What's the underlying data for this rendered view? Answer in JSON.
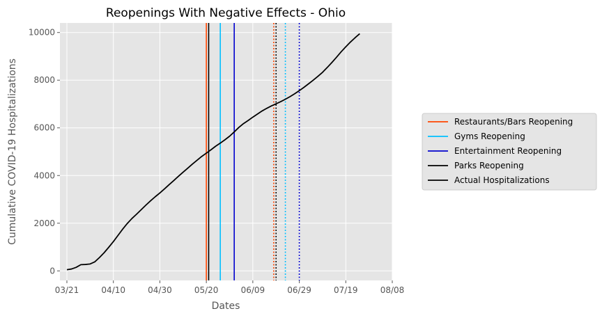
{
  "chart_data": {
    "type": "line",
    "title": "Reopenings With Negative Effects - Ohio",
    "xlabel": "Dates",
    "ylabel": "Cumulative COVID-19 Hospitalizations",
    "x_ticks": [
      "03/21",
      "04/10",
      "04/30",
      "05/20",
      "06/09",
      "06/29",
      "07/19",
      "08/08"
    ],
    "x_tick_days": [
      0,
      20,
      40,
      60,
      80,
      100,
      120,
      140
    ],
    "y_ticks": [
      0,
      2000,
      4000,
      6000,
      8000,
      10000
    ],
    "xlim": [
      "03/18",
      "08/08"
    ],
    "ylim": [
      -400,
      10400
    ],
    "grid": true,
    "legend_position": "right",
    "colors": {
      "background": "#e5e5e5",
      "grid": "#ffffff",
      "restaurants": "#ff4500",
      "gyms": "#00bfff",
      "entertainment": "#0000cd",
      "parks": "#000000",
      "actual": "#000000"
    },
    "series": [
      {
        "name": "Actual Hospitalizations",
        "color": "#000000",
        "points": [
          [
            "03/21",
            50
          ],
          [
            "03/23",
            80
          ],
          [
            "03/25",
            150
          ],
          [
            "03/27",
            260
          ],
          [
            "03/29",
            270
          ],
          [
            "03/31",
            290
          ],
          [
            "04/02",
            380
          ],
          [
            "04/04",
            560
          ],
          [
            "04/06",
            760
          ],
          [
            "04/08",
            990
          ],
          [
            "04/10",
            1230
          ],
          [
            "04/12",
            1490
          ],
          [
            "04/14",
            1750
          ],
          [
            "04/16",
            1990
          ],
          [
            "04/18",
            2200
          ],
          [
            "04/20",
            2380
          ],
          [
            "04/22",
            2570
          ],
          [
            "04/24",
            2760
          ],
          [
            "04/26",
            2940
          ],
          [
            "04/28",
            3110
          ],
          [
            "04/30",
            3270
          ],
          [
            "05/02",
            3440
          ],
          [
            "05/04",
            3620
          ],
          [
            "05/06",
            3790
          ],
          [
            "05/08",
            3970
          ],
          [
            "05/10",
            4140
          ],
          [
            "05/12",
            4310
          ],
          [
            "05/14",
            4480
          ],
          [
            "05/16",
            4640
          ],
          [
            "05/18",
            4800
          ],
          [
            "05/20",
            4940
          ],
          [
            "05/22",
            5080
          ],
          [
            "05/24",
            5230
          ],
          [
            "05/26",
            5360
          ],
          [
            "05/28",
            5500
          ],
          [
            "05/30",
            5650
          ],
          [
            "06/01",
            5830
          ],
          [
            "06/03",
            6020
          ],
          [
            "06/05",
            6180
          ],
          [
            "06/07",
            6310
          ],
          [
            "06/09",
            6450
          ],
          [
            "06/11",
            6580
          ],
          [
            "06/13",
            6710
          ],
          [
            "06/15",
            6820
          ],
          [
            "06/17",
            6920
          ],
          [
            "06/19",
            7010
          ],
          [
            "06/21",
            7100
          ],
          [
            "06/23",
            7200
          ],
          [
            "06/25",
            7310
          ],
          [
            "06/27",
            7430
          ],
          [
            "06/29",
            7560
          ],
          [
            "07/01",
            7700
          ],
          [
            "07/03",
            7850
          ],
          [
            "07/05",
            8000
          ],
          [
            "07/07",
            8160
          ],
          [
            "07/09",
            8330
          ],
          [
            "07/11",
            8530
          ],
          [
            "07/13",
            8740
          ],
          [
            "07/15",
            8960
          ],
          [
            "07/17",
            9190
          ],
          [
            "07/19",
            9400
          ],
          [
            "07/21",
            9600
          ],
          [
            "07/23",
            9780
          ],
          [
            "07/25",
            9950
          ]
        ]
      }
    ],
    "vlines": [
      {
        "name": "Restaurants/Bars Reopening",
        "color": "#ff4500",
        "style": "solid",
        "date": "05/20"
      },
      {
        "name": "Parks Reopening",
        "color": "#000000",
        "style": "solid",
        "date": "05/21"
      },
      {
        "name": "Gyms Reopening",
        "color": "#00bfff",
        "style": "solid",
        "date": "05/26"
      },
      {
        "name": "Entertainment Reopening",
        "color": "#0000cd",
        "style": "solid",
        "date": "06/01"
      },
      {
        "color": "#ff4500",
        "style": "dotted",
        "date": "06/18"
      },
      {
        "color": "#000000",
        "style": "dotted",
        "date": "06/19"
      },
      {
        "color": "#00bfff",
        "style": "dotted",
        "date": "06/23"
      },
      {
        "color": "#0000cd",
        "style": "dotted",
        "date": "06/29"
      }
    ],
    "legend": [
      {
        "label": "Restaurants/Bars Reopening",
        "color": "#ff4500"
      },
      {
        "label": "Gyms Reopening",
        "color": "#00bfff"
      },
      {
        "label": "Entertainment Reopening",
        "color": "#0000cd"
      },
      {
        "label": "Parks Reopening",
        "color": "#000000"
      },
      {
        "label": "Actual Hospitalizations",
        "color": "#000000"
      }
    ]
  }
}
